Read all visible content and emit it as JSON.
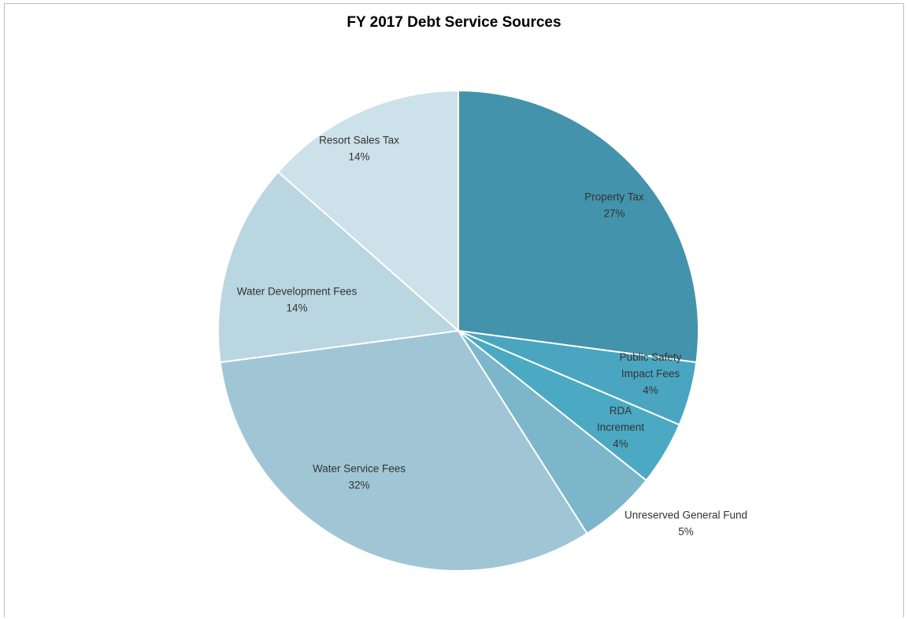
{
  "chart_data": {
    "type": "pie",
    "title": "FY 2017 Debt Service Sources",
    "start_angle_deg": 0,
    "direction": "clockwise",
    "slices": [
      {
        "label": "Property Tax",
        "pct_label": "27%",
        "value": 27.1,
        "color": "#4293ab",
        "label_lines": [
          "Property Tax",
          "27%"
        ]
      },
      {
        "label": "Public Safety Impact Fees",
        "pct_label": "4%",
        "value": 4.3,
        "color": "#4aa6c0",
        "label_lines": [
          "Public Safety",
          "Impact Fees",
          "4%"
        ]
      },
      {
        "label": "RDA Increment",
        "pct_label": "4%",
        "value": 4.3,
        "color": "#4ba9c3",
        "label_lines": [
          "RDA",
          "Increment",
          "4%"
        ]
      },
      {
        "label": "Unreserved General Fund",
        "pct_label": "5%",
        "value": 5.3,
        "color": "#7cb6cb",
        "label_lines": [
          "Unreserved General Fund",
          "5%"
        ]
      },
      {
        "label": "Water Service Fees",
        "pct_label": "32%",
        "value": 31.9,
        "color": "#a0c6d6",
        "label_lines": [
          "Water Service Fees",
          "32%"
        ]
      },
      {
        "label": "Water Development Fees",
        "pct_label": "14%",
        "value": 13.6,
        "color": "#b9d6e1",
        "label_lines": [
          "Water Development Fees",
          "14%"
        ]
      },
      {
        "label": "Resort Sales Tax",
        "pct_label": "14%",
        "value": 13.5,
        "color": "#cde1ea",
        "label_lines": [
          "Resort Sales Tax",
          "14%"
        ]
      }
    ]
  }
}
